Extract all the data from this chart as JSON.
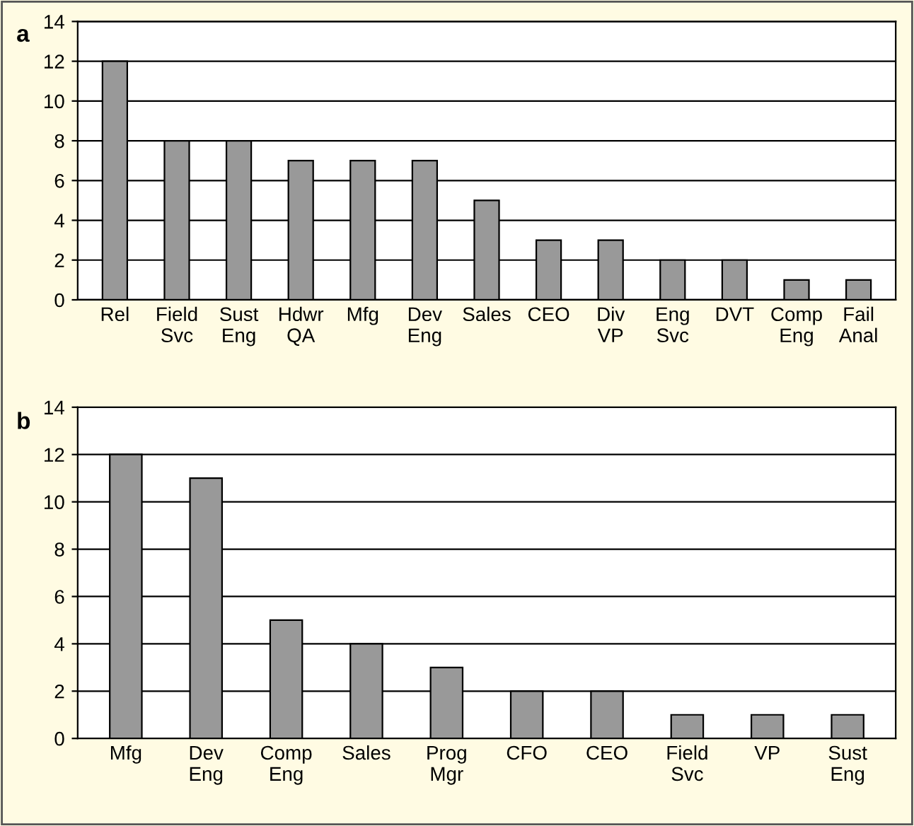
{
  "chart_data": [
    {
      "type": "bar",
      "title": "a",
      "categories": [
        "Rel",
        "Field\nSvc",
        "Sust\nEng",
        "Hdwr\nQA",
        "Mfg",
        "Dev\nEng",
        "Sales",
        "CEO",
        "Div\nVP",
        "Eng\nSvc",
        "DVT",
        "Comp\nEng",
        "Fail\nAnal"
      ],
      "values": [
        12,
        8,
        8,
        7,
        7,
        7,
        5,
        3,
        3,
        2,
        2,
        1,
        1
      ],
      "color": "#999999",
      "ylim": [
        0,
        14
      ],
      "yticks": [
        0,
        2,
        4,
        6,
        8,
        10,
        12,
        14
      ],
      "grid": "y"
    },
    {
      "type": "bar",
      "title": "b",
      "categories": [
        "Mfg",
        "Dev\nEng",
        "Comp\nEng",
        "Sales",
        "Prog\nMgr",
        "CFO",
        "CEO",
        "Field\nSvc",
        "VP",
        "Sust\nEng"
      ],
      "values": [
        12,
        11,
        5,
        4,
        3,
        2,
        2,
        1,
        1,
        1
      ],
      "color": "#999999",
      "ylim": [
        0,
        14
      ],
      "yticks": [
        0,
        2,
        4,
        6,
        8,
        10,
        12,
        14
      ],
      "grid": "y"
    }
  ]
}
